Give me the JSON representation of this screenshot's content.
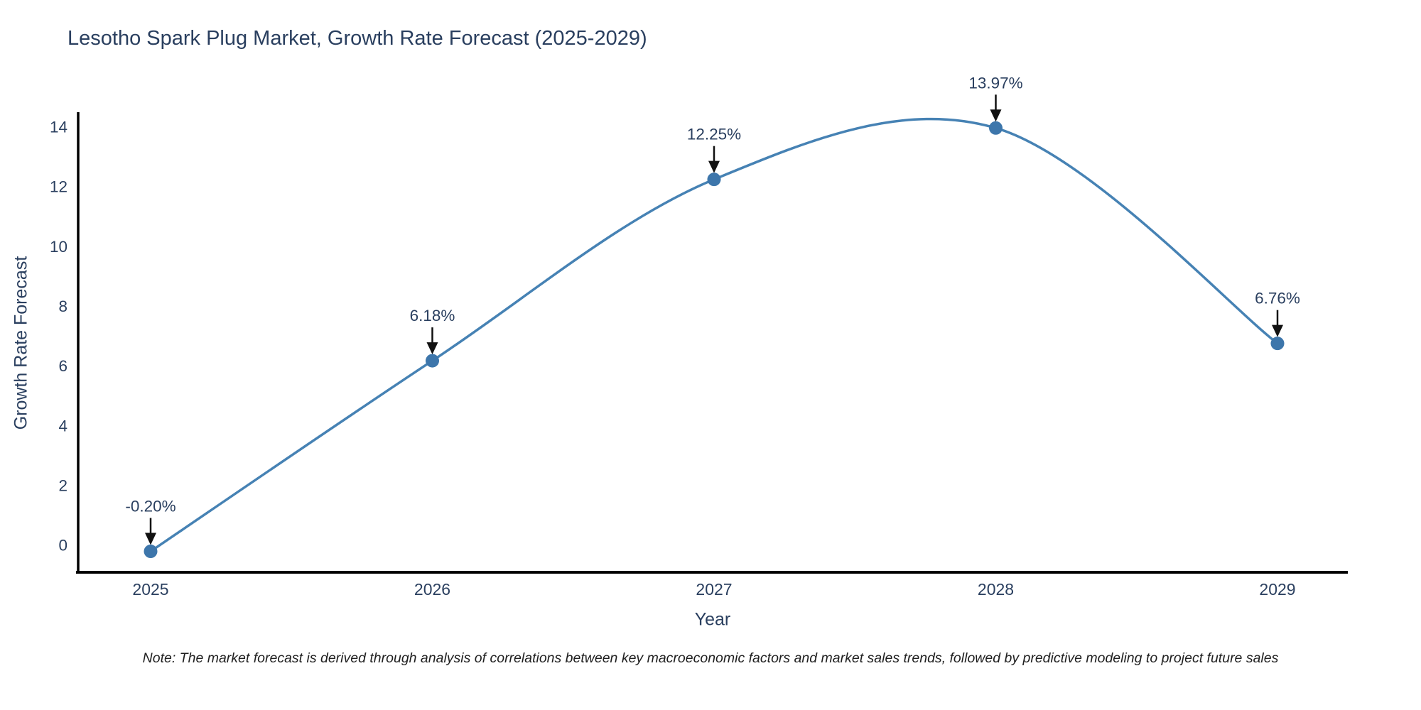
{
  "chart_data": {
    "type": "line",
    "title": "Lesotho Spark Plug Market, Growth Rate Forecast (2025-2029)",
    "xlabel": "Year",
    "ylabel": "Growth Rate Forecast",
    "categories": [
      "2025",
      "2026",
      "2027",
      "2028",
      "2029"
    ],
    "values": [
      -0.2,
      6.18,
      12.25,
      13.97,
      6.76
    ],
    "point_labels": [
      "-0.20%",
      "6.18%",
      "12.25%",
      "13.97%",
      "6.76%"
    ],
    "yticks": [
      0,
      2,
      4,
      6,
      8,
      10,
      12,
      14
    ],
    "ylim": [
      -0.9,
      14.5
    ],
    "grid": false,
    "legend": false,
    "line_shape": "spline",
    "marker": "circle"
  },
  "note": "Note: The market forecast is derived through analysis of correlations between key macroeconomic factors and market sales trends, followed by predictive modeling to project future sales",
  "colors": {
    "line": "#4682b4",
    "marker": "#3d76ab",
    "text": "#2a3f5f",
    "axis": "#000000",
    "arrow": "#111111",
    "note_text": "#1f1f1f",
    "background": "#ffffff"
  }
}
